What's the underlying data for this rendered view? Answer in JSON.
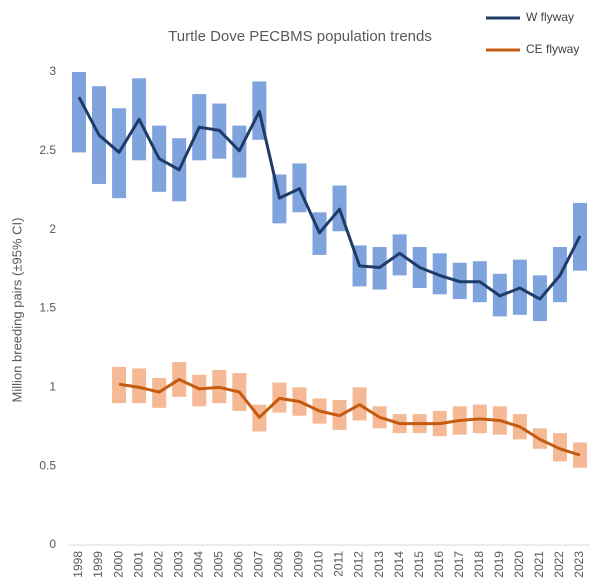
{
  "chart_data": {
    "type": "line_ci",
    "title": "Turtle Dove PECBMS population trends",
    "y_label": "Million breeding pairs (±95% CI)",
    "categories": [
      "1998",
      "1999",
      "2000",
      "2001",
      "2002",
      "2003",
      "2004",
      "2005",
      "2006",
      "2007",
      "2008",
      "2009",
      "2010",
      "2011",
      "2012",
      "2013",
      "2014",
      "2015",
      "2016",
      "2017",
      "2018",
      "2019",
      "2020",
      "2021",
      "2022",
      "2023"
    ],
    "ylim": [
      0,
      3
    ],
    "yticks": [
      0,
      0.5,
      1,
      1.5,
      2,
      2.5,
      3
    ],
    "grid": false,
    "legend": "top-right",
    "series": [
      {
        "name": "W flyway",
        "color": "#1f3c68",
        "ci_color": "#7fa3dd",
        "values": [
          2.84,
          2.6,
          2.49,
          2.7,
          2.45,
          2.38,
          2.65,
          2.63,
          2.5,
          2.75,
          2.2,
          2.26,
          1.98,
          2.13,
          1.77,
          1.76,
          1.85,
          1.76,
          1.71,
          1.67,
          1.67,
          1.58,
          1.63,
          1.56,
          1.71,
          1.96
        ],
        "low": [
          2.49,
          2.29,
          2.2,
          2.44,
          2.24,
          2.18,
          2.44,
          2.45,
          2.33,
          2.57,
          2.04,
          2.11,
          1.84,
          1.99,
          1.64,
          1.62,
          1.71,
          1.63,
          1.59,
          1.56,
          1.54,
          1.45,
          1.46,
          1.42,
          1.54,
          1.74
        ],
        "high": [
          3.0,
          2.91,
          2.77,
          2.96,
          2.66,
          2.58,
          2.86,
          2.8,
          2.66,
          2.94,
          2.35,
          2.42,
          2.11,
          2.28,
          1.9,
          1.89,
          1.97,
          1.89,
          1.85,
          1.79,
          1.8,
          1.72,
          1.81,
          1.71,
          1.89,
          2.17
        ]
      },
      {
        "name": "CE flyway",
        "color": "#c55a11",
        "ci_color": "#f6b995",
        "values": [
          null,
          null,
          1.02,
          1.0,
          0.97,
          1.05,
          0.99,
          1.0,
          0.97,
          0.81,
          0.93,
          0.91,
          0.85,
          0.82,
          0.89,
          0.81,
          0.77,
          0.77,
          0.77,
          0.79,
          0.8,
          0.79,
          0.75,
          0.67,
          0.61,
          0.57
        ],
        "low": [
          null,
          null,
          0.9,
          0.9,
          0.87,
          0.94,
          0.88,
          0.9,
          0.85,
          0.72,
          0.84,
          0.82,
          0.77,
          0.73,
          0.79,
          0.74,
          0.71,
          0.71,
          0.69,
          0.7,
          0.71,
          0.7,
          0.67,
          0.61,
          0.53,
          0.49
        ],
        "high": [
          null,
          null,
          1.13,
          1.12,
          1.06,
          1.16,
          1.08,
          1.11,
          1.09,
          0.89,
          1.03,
          1.0,
          0.93,
          0.92,
          1.0,
          0.88,
          0.83,
          0.83,
          0.85,
          0.88,
          0.89,
          0.88,
          0.83,
          0.74,
          0.71,
          0.65
        ]
      }
    ]
  }
}
